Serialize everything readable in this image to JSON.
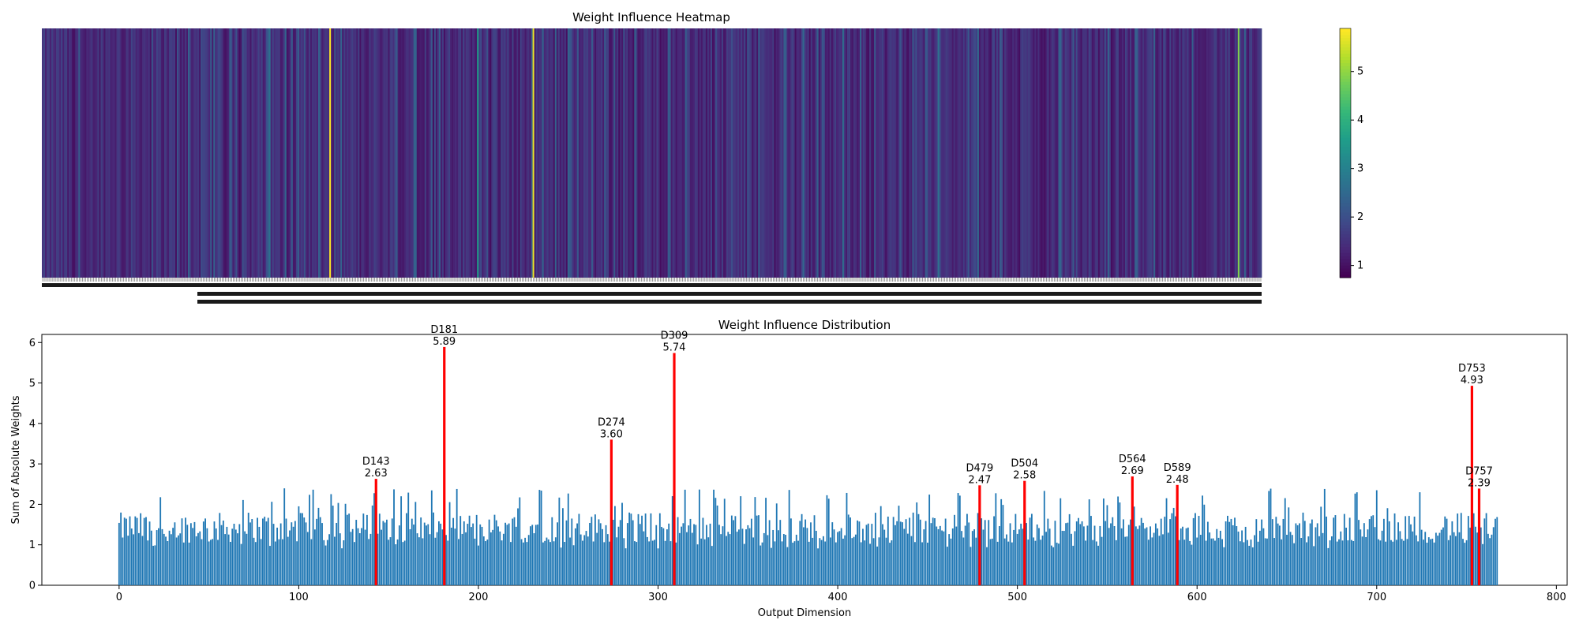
{
  "chart_data": [
    {
      "type": "heatmap",
      "title": "Weight Influence Heatmap",
      "n_columns": 768,
      "x_tick_labels": "one per column, indices 0-767 (illegible overlapping text)",
      "colormap": "viridis",
      "colorbar": {
        "ticks": [
          1,
          2,
          3,
          4,
          5
        ],
        "range": [
          0.75,
          5.89
        ]
      },
      "highlighted_columns": [
        {
          "index": 181,
          "value": 5.89
        },
        {
          "index": 309,
          "value": 5.74
        },
        {
          "index": 753,
          "value": 4.93
        },
        {
          "index": 274,
          "value": 3.6
        },
        {
          "index": 564,
          "value": 2.69
        },
        {
          "index": 143,
          "value": 2.63
        },
        {
          "index": 504,
          "value": 2.58
        },
        {
          "index": 589,
          "value": 2.48
        },
        {
          "index": 479,
          "value": 2.47
        },
        {
          "index": 757,
          "value": 2.39
        }
      ],
      "baseline_values": "approx. 0.75-2.4 for all other columns"
    },
    {
      "type": "bar",
      "title": "Weight Influence Distribution",
      "xlabel": "Output Dimension",
      "ylabel": "Sum of Absolute Weights",
      "xlim": [
        -43,
        806
      ],
      "ylim": [
        0,
        6.2
      ],
      "x_ticks": [
        0,
        100,
        200,
        300,
        400,
        500,
        600,
        700,
        800
      ],
      "y_ticks": [
        0,
        1,
        2,
        3,
        4,
        5,
        6
      ],
      "n_bars": 768,
      "bar_color": "#1f77b4",
      "highlight_color": "#ff0000",
      "highlighted_bars": [
        {
          "dim": 143,
          "label": "D143",
          "value_label": "2.63",
          "value": 2.63
        },
        {
          "dim": 181,
          "label": "D181",
          "value_label": "5.89",
          "value": 5.89
        },
        {
          "dim": 274,
          "label": "D274",
          "value_label": "3.60",
          "value": 3.6
        },
        {
          "dim": 309,
          "label": "D309",
          "value_label": "5.74",
          "value": 5.74
        },
        {
          "dim": 479,
          "label": "D479",
          "value_label": "2.47",
          "value": 2.47
        },
        {
          "dim": 504,
          "label": "D504",
          "value_label": "2.58",
          "value": 2.58
        },
        {
          "dim": 564,
          "label": "D564",
          "value_label": "2.69",
          "value": 2.69
        },
        {
          "dim": 589,
          "label": "D589",
          "value_label": "2.48",
          "value": 2.48
        },
        {
          "dim": 753,
          "label": "D753",
          "value_label": "4.93",
          "value": 4.93
        },
        {
          "dim": 757,
          "label": "D757",
          "value_label": "2.39",
          "value": 2.39
        }
      ],
      "baseline_values": "approx. 0.9-2.4 for all other dimensions (mean ~1.5)"
    }
  ]
}
